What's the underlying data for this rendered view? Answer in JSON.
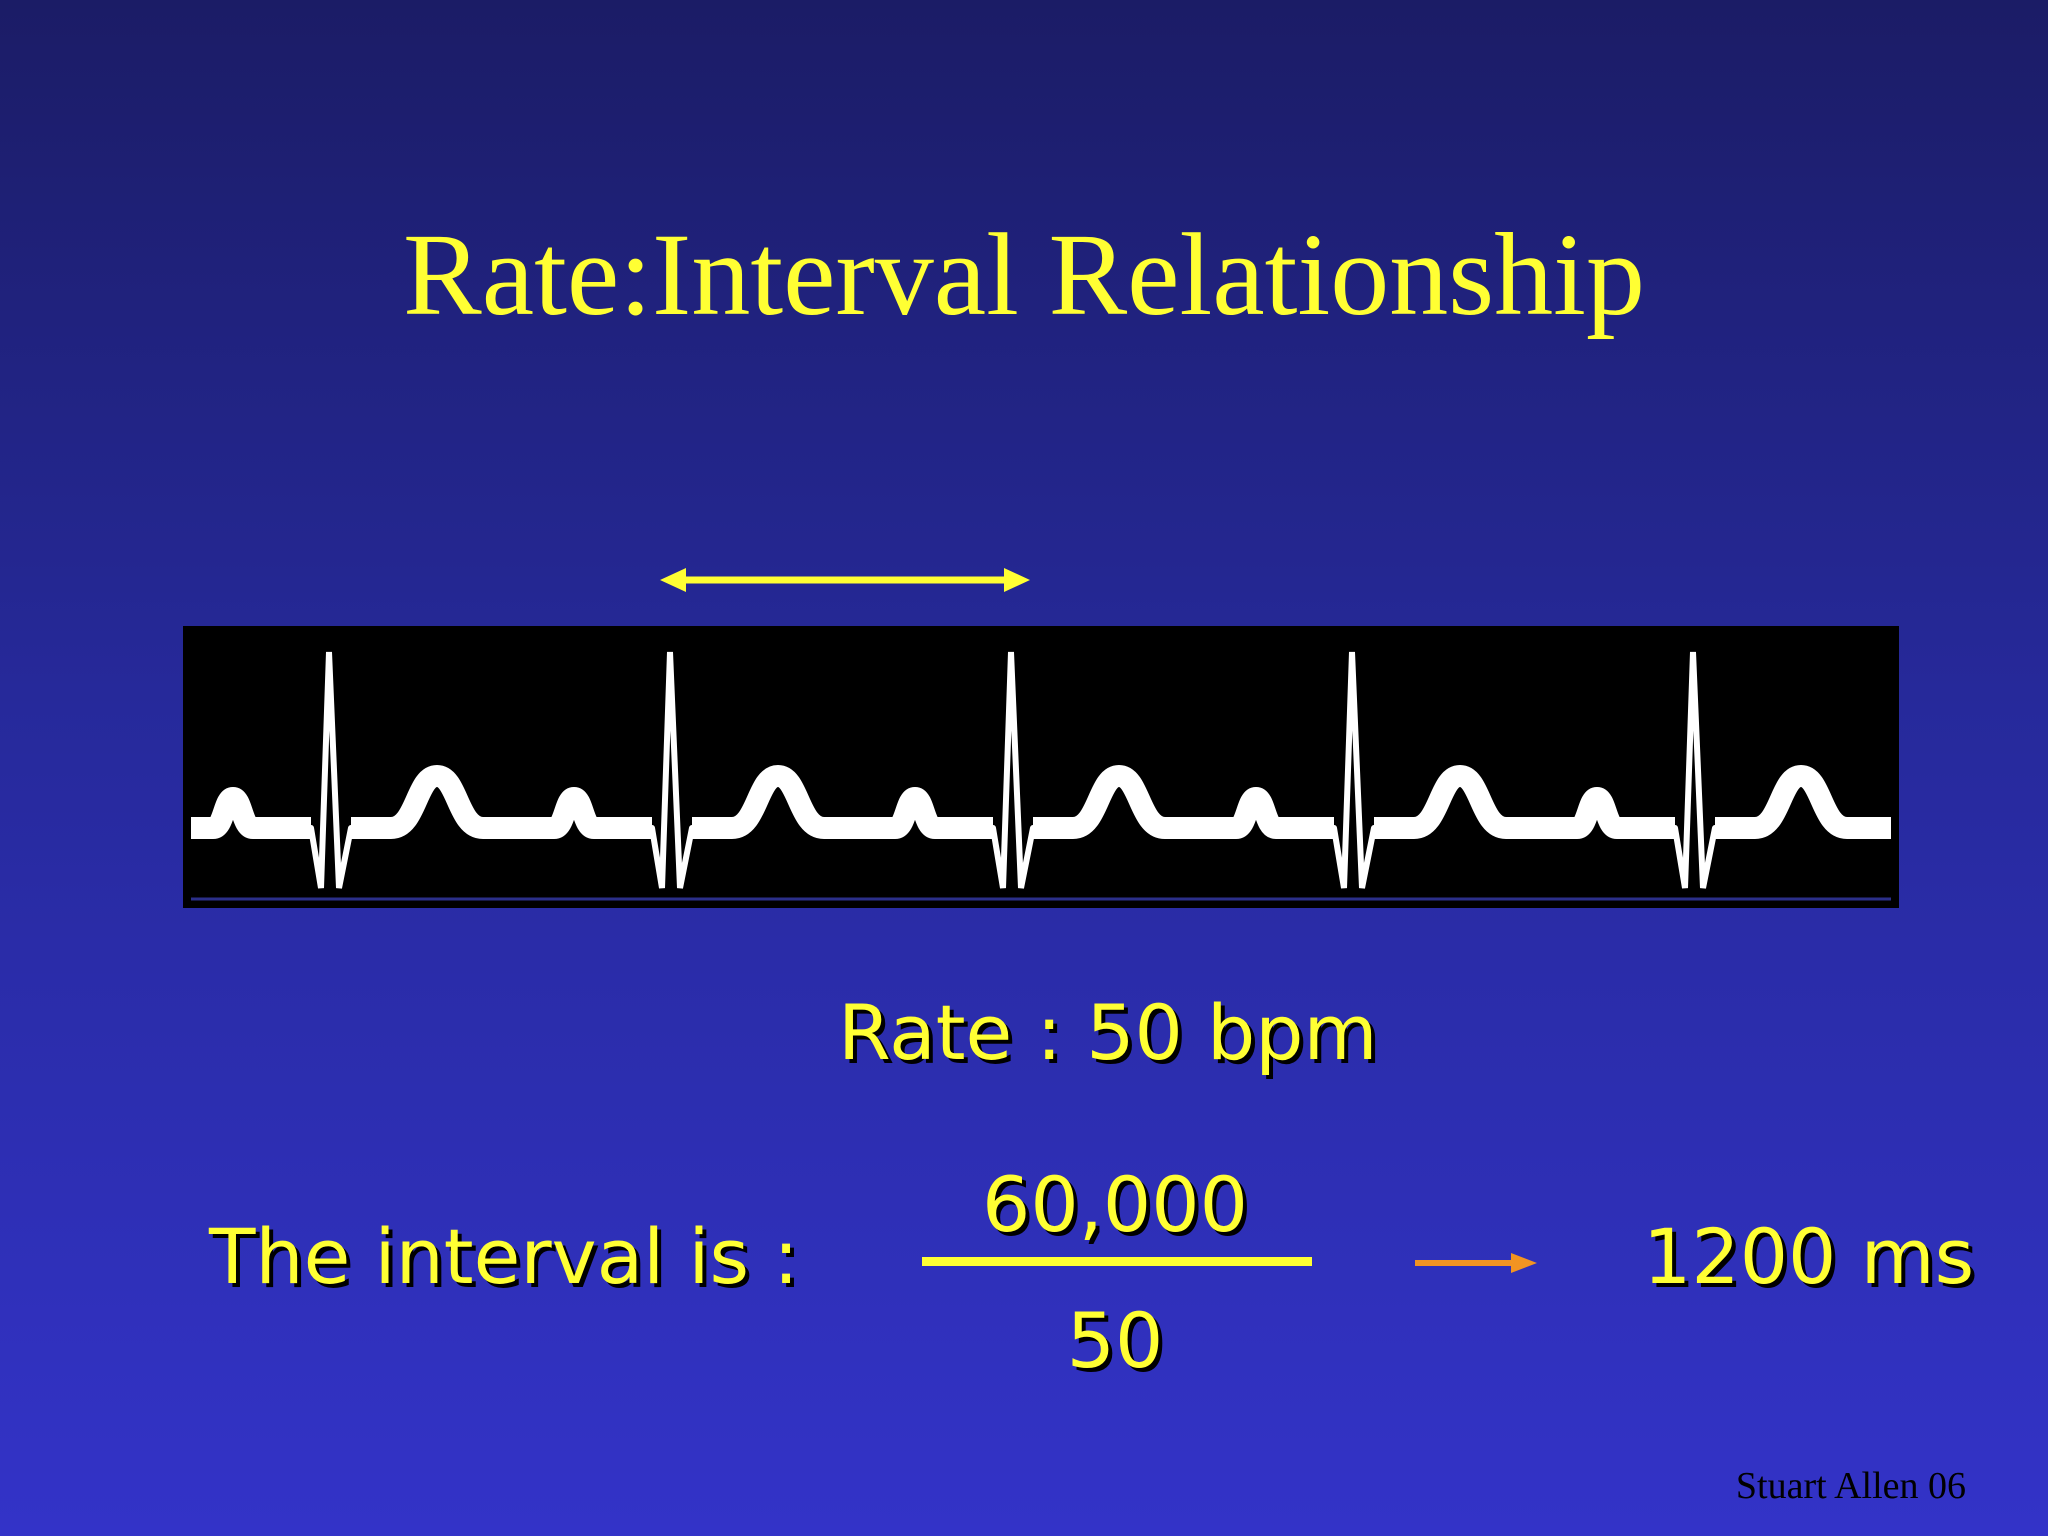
{
  "slide": {
    "title": "Rate:Interval Relationship",
    "rate_text": "Rate : 50 bpm",
    "interval_label": "The interval is :",
    "fraction": {
      "numerator": "60,000",
      "denominator": "50"
    },
    "result": "1200 ms",
    "credit": "Stuart Allen 06"
  },
  "ecg": {
    "beats": 5,
    "rate_bpm": 50,
    "interval_ms": 1200
  },
  "colors": {
    "text": "#ffff33",
    "trace": "#ffffff",
    "strip_background": "#000000",
    "result_arrow": "#f29422",
    "interval_arrow": "#ffff33"
  }
}
